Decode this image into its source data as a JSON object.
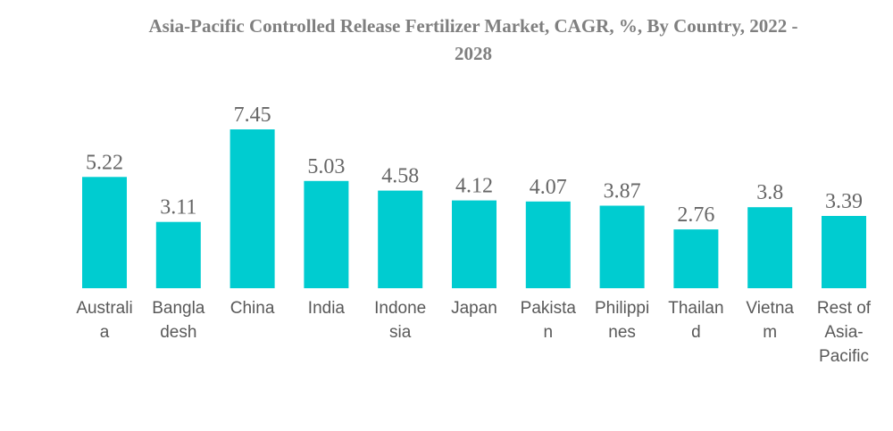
{
  "chart_data": {
    "type": "bar",
    "title": "Asia-Pacific Controlled Release Fertilizer Market, CAGR, %, By Country, 2022 - 2028",
    "title_lines": [
      "Asia-Pacific Controlled Release Fertilizer Market, CAGR, %, By Country, 2022 -",
      "2028"
    ],
    "categories": [
      "Australia",
      "Bangladesh",
      "China",
      "India",
      "Indonesia",
      "Japan",
      "Pakistan",
      "Philippines",
      "Thailand",
      "Vietnam",
      "Rest of Asia-Pacific"
    ],
    "category_label_lines": [
      [
        "Australi",
        "a"
      ],
      [
        "Bangla",
        "desh"
      ],
      [
        "China"
      ],
      [
        "India"
      ],
      [
        "Indone",
        "sia"
      ],
      [
        "Japan"
      ],
      [
        "Pakista",
        "n"
      ],
      [
        "Philippi",
        "nes"
      ],
      [
        "Thailan",
        "d"
      ],
      [
        "Vietna",
        "m"
      ],
      [
        "Rest of",
        "Asia-",
        "Pacific"
      ]
    ],
    "values": [
      5.22,
      3.11,
      7.45,
      5.03,
      4.58,
      4.12,
      4.07,
      3.87,
      2.76,
      3.8,
      3.39
    ],
    "value_labels": [
      "5.22",
      "3.11",
      "7.45",
      "5.03",
      "4.58",
      "4.12",
      "4.07",
      "3.87",
      "2.76",
      "3.8",
      "3.39"
    ],
    "xlabel": "",
    "ylabel": "",
    "ylim": [
      0,
      7.45
    ],
    "grid": false,
    "legend": "none",
    "bar_color": "#00CCD0"
  }
}
